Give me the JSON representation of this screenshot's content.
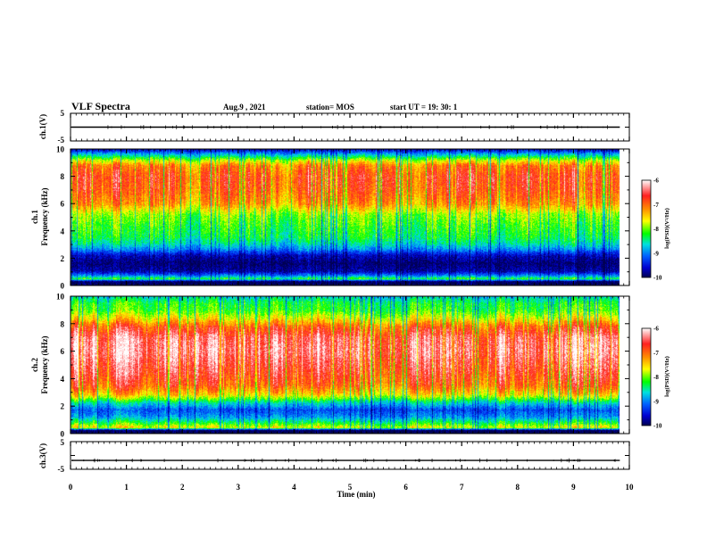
{
  "header": {
    "title": "VLF Spectra",
    "date": "Aug.9  , 2021",
    "station": "station= MOS",
    "start_ut": "start  UT =   19: 30: 1"
  },
  "chart_data": [
    {
      "id": "ch1-waveform",
      "type": "line",
      "ylabel": "ch.1(V)",
      "ylim": [
        -5,
        5
      ],
      "yticks": [
        "5",
        "-5"
      ],
      "xlim": [
        0,
        10
      ],
      "baseline_value": 0
    },
    {
      "id": "ch1-spectrogram",
      "type": "heatmap",
      "ylabel": "ch.1\nFrequency (kHz)",
      "ylim": [
        0,
        10
      ],
      "yticks": [
        "0",
        "2",
        "4",
        "6",
        "8",
        "10"
      ],
      "xlim": [
        0,
        10
      ],
      "data_extent_min": 9.83,
      "colorbar": {
        "label": "log(PSD)(V²/Hz)",
        "range": [
          -10,
          -6
        ],
        "ticks": [
          "-6",
          "-7",
          "-8",
          "-9",
          "-10"
        ]
      },
      "band_profile_khz_log_psd": [
        [
          0.0,
          -10
        ],
        [
          0.25,
          -10
        ],
        [
          0.45,
          -8.2
        ],
        [
          0.7,
          -9.0
        ],
        [
          1.0,
          -9.7
        ],
        [
          1.6,
          -9.9
        ],
        [
          2.2,
          -9.6
        ],
        [
          2.6,
          -9.0
        ],
        [
          3.0,
          -8.6
        ],
        [
          3.5,
          -8.3
        ],
        [
          4.5,
          -8.1
        ],
        [
          5.2,
          -7.9
        ],
        [
          6.0,
          -7.2
        ],
        [
          7.0,
          -6.9
        ],
        [
          8.0,
          -6.8
        ],
        [
          8.8,
          -7.1
        ],
        [
          9.2,
          -7.8
        ],
        [
          9.6,
          -8.7
        ],
        [
          10.0,
          -9.6
        ]
      ]
    },
    {
      "id": "ch2-spectrogram",
      "type": "heatmap",
      "ylabel": "ch.2\nFrequency (kHz)",
      "ylim": [
        0,
        10
      ],
      "yticks": [
        "0",
        "2",
        "4",
        "6",
        "8",
        "10"
      ],
      "xlim": [
        0,
        10
      ],
      "data_extent_min": 9.83,
      "colorbar": {
        "label": "log(PSD)(V²/Hz)",
        "range": [
          -10,
          -6
        ],
        "ticks": [
          "-6",
          "-7",
          "-8",
          "-9",
          "-10"
        ]
      },
      "band_profile_khz_log_psd": [
        [
          0.0,
          -10
        ],
        [
          0.2,
          -10
        ],
        [
          0.4,
          -7.6
        ],
        [
          0.8,
          -8.3
        ],
        [
          1.2,
          -8.9
        ],
        [
          1.7,
          -9.2
        ],
        [
          2.2,
          -8.6
        ],
        [
          2.8,
          -7.5
        ],
        [
          3.5,
          -6.9
        ],
        [
          4.5,
          -6.6
        ],
        [
          6.0,
          -6.3
        ],
        [
          7.0,
          -6.4
        ],
        [
          7.8,
          -6.9
        ],
        [
          8.4,
          -7.6
        ],
        [
          9.0,
          -8.1
        ],
        [
          9.5,
          -8.2
        ],
        [
          10.0,
          -8.6
        ]
      ]
    },
    {
      "id": "ch3-waveform",
      "type": "line",
      "ylabel": "ch.3(V)",
      "ylim": [
        -5,
        5
      ],
      "yticks": [
        "5",
        "-5"
      ],
      "xlim": [
        0,
        10
      ],
      "baseline_value": -1.8
    }
  ],
  "x_axis": {
    "label": "Time  (min)",
    "range": [
      0,
      10
    ],
    "ticks": [
      "0",
      "1",
      "2",
      "3",
      "4",
      "5",
      "6",
      "7",
      "8",
      "9",
      "10"
    ]
  }
}
